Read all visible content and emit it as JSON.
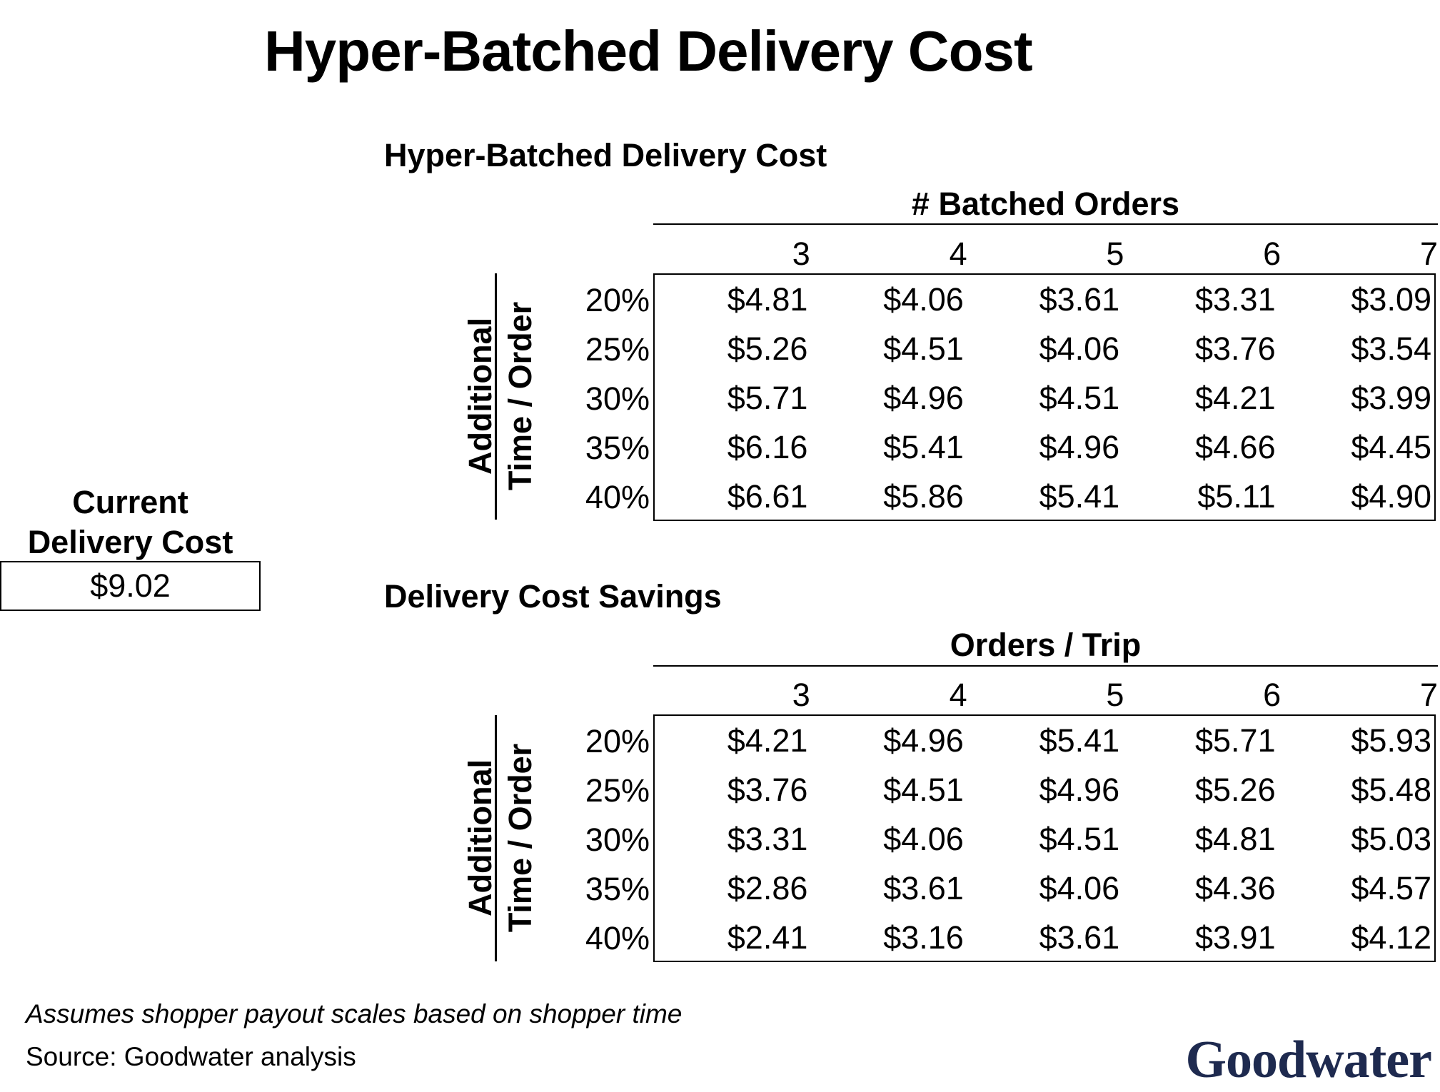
{
  "title": "Hyper-Batched Delivery Cost",
  "current": {
    "label_line1": "Current",
    "label_line2": "Delivery Cost",
    "value": "$9.02"
  },
  "tables": [
    {
      "title": "Hyper-Batched Delivery Cost",
      "col_group_title": "# Batched Orders",
      "row_group_title_line1": "Additional",
      "row_group_title_line2": "Time / Order",
      "col_headers": [
        "3",
        "4",
        "5",
        "6",
        "7"
      ],
      "row_headers": [
        "20%",
        "25%",
        "30%",
        "35%",
        "40%"
      ],
      "cells": [
        [
          "$4.81",
          "$4.06",
          "$3.61",
          "$3.31",
          "$3.09"
        ],
        [
          "$5.26",
          "$4.51",
          "$4.06",
          "$3.76",
          "$3.54"
        ],
        [
          "$5.71",
          "$4.96",
          "$4.51",
          "$4.21",
          "$3.99"
        ],
        [
          "$6.16",
          "$5.41",
          "$4.96",
          "$4.66",
          "$4.45"
        ],
        [
          "$6.61",
          "$5.86",
          "$5.41",
          "$5.11",
          "$4.90"
        ]
      ]
    },
    {
      "title": "Delivery Cost Savings",
      "col_group_title": "Orders / Trip",
      "row_group_title_line1": "Additional",
      "row_group_title_line2": "Time / Order",
      "col_headers": [
        "3",
        "4",
        "5",
        "6",
        "7"
      ],
      "row_headers": [
        "20%",
        "25%",
        "30%",
        "35%",
        "40%"
      ],
      "cells": [
        [
          "$4.21",
          "$4.96",
          "$5.41",
          "$5.71",
          "$5.93"
        ],
        [
          "$3.76",
          "$4.51",
          "$4.96",
          "$5.26",
          "$5.48"
        ],
        [
          "$3.31",
          "$4.06",
          "$4.51",
          "$4.81",
          "$5.03"
        ],
        [
          "$2.86",
          "$3.61",
          "$4.06",
          "$4.36",
          "$4.57"
        ],
        [
          "$2.41",
          "$3.16",
          "$3.61",
          "$3.91",
          "$4.12"
        ]
      ]
    }
  ],
  "footnote": "Assumes shopper payout scales based on shopper time",
  "source": "Source: Goodwater analysis",
  "logo_text": "Goodwater",
  "colors": {
    "logo": "#1e2a4f",
    "text": "#000000",
    "background": "#ffffff"
  }
}
